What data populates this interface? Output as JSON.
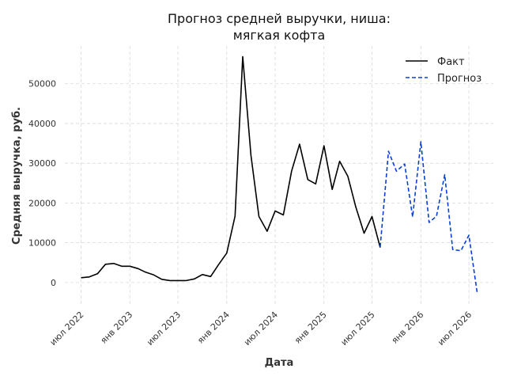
{
  "chart_data": {
    "type": "line",
    "title_lines": [
      "Прогноз средней выручки, ниша:",
      "мягкая кофта"
    ],
    "xlabel": "Дата",
    "ylabel": "Средняя выручка, руб.",
    "x_tick_labels": [
      "июл 2022",
      "янв 2023",
      "июл 2023",
      "янв 2024",
      "июл 2024",
      "янв 2025",
      "июл 2025",
      "янв 2026",
      "июл 2026"
    ],
    "y_ticks": [
      0,
      10000,
      20000,
      30000,
      40000,
      50000
    ],
    "x_range": [
      "2022-05-01",
      "2026-10-01"
    ],
    "ylim": [
      -5800,
      59500
    ],
    "grid": true,
    "legend_position": "top-right",
    "colors": {
      "fact": "#000000",
      "forecast": "#0a3fd6"
    },
    "series": [
      {
        "name": "Факт",
        "style": "solid",
        "color": "#000000",
        "points": [
          [
            "2022-07-01",
            1200
          ],
          [
            "2022-08-01",
            1400
          ],
          [
            "2022-09-01",
            2200
          ],
          [
            "2022-10-01",
            4600
          ],
          [
            "2022-11-01",
            4800
          ],
          [
            "2022-12-01",
            4100
          ],
          [
            "2023-01-01",
            4100
          ],
          [
            "2023-02-01",
            3500
          ],
          [
            "2023-03-01",
            2600
          ],
          [
            "2023-04-01",
            1900
          ],
          [
            "2023-05-01",
            800
          ],
          [
            "2023-06-01",
            500
          ],
          [
            "2023-07-01",
            500
          ],
          [
            "2023-08-01",
            500
          ],
          [
            "2023-09-01",
            900
          ],
          [
            "2023-10-01",
            2000
          ],
          [
            "2023-11-01",
            1500
          ],
          [
            "2023-12-01",
            4500
          ],
          [
            "2024-01-01",
            7400
          ],
          [
            "2024-02-01",
            16700
          ],
          [
            "2024-03-01",
            56800
          ],
          [
            "2024-04-01",
            32000
          ],
          [
            "2024-05-01",
            16600
          ],
          [
            "2024-06-01",
            12900
          ],
          [
            "2024-07-01",
            18000
          ],
          [
            "2024-08-01",
            17000
          ],
          [
            "2024-09-01",
            28000
          ],
          [
            "2024-10-01",
            34800
          ],
          [
            "2024-11-01",
            25900
          ],
          [
            "2024-12-01",
            24800
          ],
          [
            "2025-01-01",
            34400
          ],
          [
            "2025-02-01",
            23400
          ],
          [
            "2025-03-01",
            30500
          ],
          [
            "2025-04-01",
            26700
          ],
          [
            "2025-05-01",
            19000
          ],
          [
            "2025-06-01",
            12400
          ],
          [
            "2025-07-01",
            16600
          ],
          [
            "2025-08-01",
            8800
          ]
        ]
      },
      {
        "name": "Прогноз",
        "style": "dashed",
        "color": "#0a3fd6",
        "points": [
          [
            "2025-08-01",
            9000
          ],
          [
            "2025-09-01",
            33000
          ],
          [
            "2025-10-01",
            28000
          ],
          [
            "2025-11-01",
            29800
          ],
          [
            "2025-12-01",
            16500
          ],
          [
            "2026-01-01",
            35400
          ],
          [
            "2026-02-01",
            15100
          ],
          [
            "2026-03-01",
            16700
          ],
          [
            "2026-04-01",
            27100
          ],
          [
            "2026-05-01",
            8300
          ],
          [
            "2026-06-01",
            8000
          ],
          [
            "2026-07-01",
            11900
          ],
          [
            "2026-08-01",
            -2500
          ]
        ]
      }
    ]
  }
}
